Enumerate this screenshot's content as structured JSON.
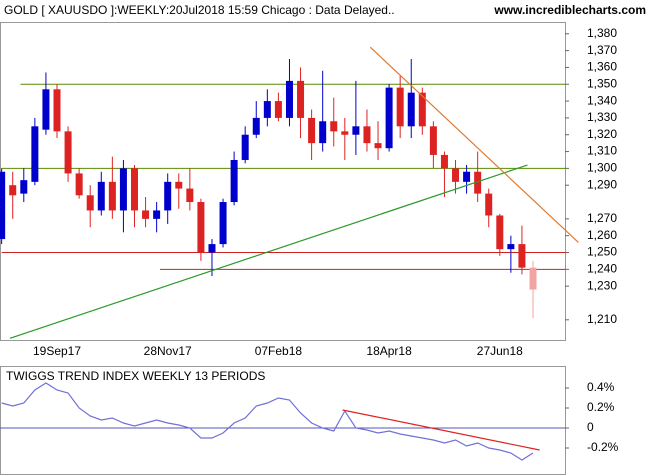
{
  "chart_data": {
    "type": "candlestick",
    "title": "GOLD [ XAUUSDO ]:WEEKLY:20Jul2018 15:59 Chicago : Data Delayed..",
    "source": "www.incrediblecharts.com",
    "categories": [
      null,
      null,
      null,
      null,
      null,
      "19Sep17",
      null,
      null,
      null,
      null,
      null,
      null,
      null,
      null,
      null,
      "28Nov17",
      null,
      null,
      null,
      null,
      null,
      null,
      null,
      null,
      null,
      "07Feb18",
      null,
      null,
      null,
      null,
      null,
      null,
      null,
      null,
      null,
      "18Apr18",
      null,
      null,
      null,
      null,
      null,
      null,
      null,
      null,
      null,
      "27Jun18",
      null,
      null,
      null
    ],
    "open": [
      1258,
      1290,
      1285,
      1292,
      1323,
      1347,
      1322,
      1297,
      1284,
      1275,
      1292,
      1275,
      1300,
      1275,
      1270,
      1275,
      1292,
      1288,
      1280,
      1250,
      1255,
      1280,
      1305,
      1320,
      1330,
      1340,
      1330,
      1352,
      1330,
      1315,
      1328,
      1322,
      1320,
      1325,
      1315,
      1312,
      1348,
      1325,
      1345,
      1325,
      1308,
      1300,
      1292,
      1298,
      1285,
      1272,
      1252,
      1255,
      1241
    ],
    "high": [
      1300,
      1298,
      1300,
      1330,
      1357,
      1350,
      1325,
      1300,
      1290,
      1298,
      1307,
      1305,
      1302,
      1283,
      1280,
      1297,
      1297,
      1300,
      1282,
      1258,
      1282,
      1310,
      1325,
      1340,
      1347,
      1345,
      1365,
      1360,
      1335,
      1358,
      1342,
      1330,
      1352,
      1335,
      1328,
      1350,
      1355,
      1365,
      1348,
      1328,
      1310,
      1305,
      1302,
      1310,
      1288,
      1273,
      1260,
      1266,
      1245
    ],
    "low": [
      1255,
      1270,
      1280,
      1290,
      1320,
      1318,
      1292,
      1282,
      1265,
      1272,
      1270,
      1262,
      1265,
      1265,
      1262,
      1267,
      1276,
      1275,
      1245,
      1236,
      1253,
      1278,
      1303,
      1318,
      1325,
      1328,
      1325,
      1318,
      1305,
      1310,
      1313,
      1305,
      1308,
      1310,
      1305,
      1310,
      1318,
      1318,
      1320,
      1300,
      1283,
      1285,
      1285,
      1280,
      1265,
      1248,
      1238,
      1237,
      1211
    ],
    "close": [
      1298,
      1284,
      1293,
      1325,
      1347,
      1322,
      1297,
      1284,
      1275,
      1292,
      1275,
      1300,
      1275,
      1270,
      1275,
      1292,
      1288,
      1280,
      1250,
      1255,
      1280,
      1305,
      1320,
      1330,
      1340,
      1330,
      1352,
      1330,
      1315,
      1328,
      1322,
      1320,
      1325,
      1315,
      1312,
      1348,
      1325,
      1345,
      1325,
      1308,
      1300,
      1292,
      1298,
      1285,
      1272,
      1252,
      1255,
      1241,
      1228
    ],
    "up_color": "#0000cc",
    "down_color": "#dd2222",
    "last_color": "#f4a3a3",
    "ylim": [
      1198,
      1387
    ],
    "yticks": [
      {
        "value": 1380,
        "label": "1,380"
      },
      {
        "value": 1370,
        "label": "1,370"
      },
      {
        "value": 1360,
        "label": "1,360"
      },
      {
        "value": 1350,
        "label": "1,350"
      },
      {
        "value": 1340,
        "label": "1,340"
      },
      {
        "value": 1330,
        "label": "1,330"
      },
      {
        "value": 1320,
        "label": "1,320"
      },
      {
        "value": 1310,
        "label": "1,310"
      },
      {
        "value": 1300,
        "label": "1,300"
      },
      {
        "value": 1290,
        "label": "1,290"
      },
      {
        "value": 1270,
        "label": "1,270"
      },
      {
        "value": 1260,
        "label": "1,260"
      },
      {
        "value": 1250,
        "label": "1,250"
      },
      {
        "value": 1240,
        "label": "1,240"
      },
      {
        "value": 1230,
        "label": "1,230"
      },
      {
        "value": 1210,
        "label": "1,210"
      }
    ],
    "levels": [
      {
        "value": 1350,
        "start": 1.7,
        "color": "#5a8a00"
      },
      {
        "value": 1300,
        "start": 0,
        "color": "#5a8a00"
      },
      {
        "value": 1250,
        "start": 0,
        "color": "#cc2222"
      },
      {
        "value": 1240,
        "start": 14.3,
        "color": "#cc2222"
      }
    ],
    "trendlines": [
      {
        "x": [
          0.75,
          47.5
        ],
        "y": [
          1199,
          1302
        ],
        "color": "#2a9a2a"
      },
      {
        "x": [
          33.3,
          52.1
        ],
        "y": [
          1372,
          1256
        ],
        "color": "#e07a30"
      }
    ],
    "indicator": {
      "title": "TWIGGS TREND INDEX WEEKLY 13 PERIODS",
      "values": [
        0.25,
        0.22,
        0.25,
        0.38,
        0.45,
        0.38,
        0.35,
        0.2,
        0.12,
        0.08,
        0.1,
        0.05,
        0.02,
        0.05,
        0.08,
        0.05,
        0.03,
        0.0,
        -0.1,
        -0.1,
        -0.05,
        0.05,
        0.1,
        0.22,
        0.25,
        0.3,
        0.28,
        0.15,
        0.05,
        0.0,
        -0.03,
        0.17,
        0.0,
        -0.02,
        -0.05,
        -0.03,
        -0.06,
        -0.08,
        -0.1,
        -0.12,
        -0.15,
        -0.12,
        -0.18,
        -0.15,
        -0.2,
        -0.22,
        -0.25,
        -0.32,
        -0.25
      ],
      "color": "#7070d8",
      "zero_color": "#5555bb",
      "ylim": [
        -0.47,
        0.62
      ],
      "yticks": [
        {
          "value": 0.4,
          "label": "0.4%"
        },
        {
          "value": 0.2,
          "label": "0.2%"
        },
        0,
        {
          "value": -0.2,
          "label": "-0.2%"
        }
      ],
      "trendline": {
        "x": [
          30.8,
          48.6
        ],
        "y": [
          0.18,
          -0.22
        ],
        "color": "#dd2222"
      }
    }
  }
}
